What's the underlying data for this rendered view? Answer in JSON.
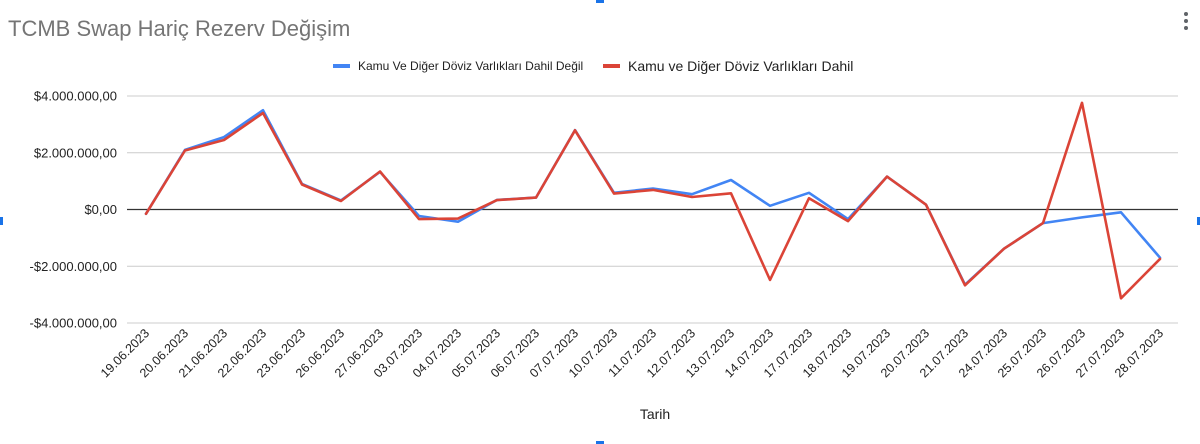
{
  "chart_data": {
    "type": "line",
    "title": "TCMB Swap Hariç Rezerv Değişim",
    "xlabel": "Tarih",
    "ylabel": "",
    "ylim": [
      -4000000,
      4000000
    ],
    "yticks": [
      4000000,
      2000000,
      0,
      -2000000,
      -4000000
    ],
    "ytick_labels": [
      "$4.000.000,00",
      "$2.000.000,00",
      "$0,00",
      "-$2.000.000,00",
      "-$4.000.000,00"
    ],
    "grid": true,
    "legend_position": "top-center",
    "categories": [
      "19.06.2023",
      "20.06.2023",
      "21.06.2023",
      "22.06.2023",
      "23.06.2023",
      "26.06.2023",
      "27.06.2023",
      "03.07.2023",
      "04.07.2023",
      "05.07.2023",
      "06.07.2023",
      "07.07.2023",
      "10.07.2023",
      "11.07.2023",
      "12.07.2023",
      "13.07.2023",
      "14.07.2023",
      "17.07.2023",
      "18.07.2023",
      "19.07.2023",
      "20.07.2023",
      "21.07.2023",
      "24.07.2023",
      "25.07.2023",
      "26.07.2023",
      "27.07.2023",
      "28.07.2023"
    ],
    "series": [
      {
        "name": "Kamu Ve Diğer Döviz Varlıkları Dahil Değil",
        "color": "#4285f4",
        "values": [
          -150000,
          2100000,
          2550000,
          3500000,
          900000,
          320000,
          1330000,
          -230000,
          -430000,
          340000,
          420000,
          2800000,
          590000,
          740000,
          540000,
          1040000,
          130000,
          590000,
          -340000,
          1160000,
          170000,
          -2650000,
          -1380000,
          -480000,
          -280000,
          -100000,
          -1700000
        ]
      },
      {
        "name": "Kamu ve Diğer Döviz Varlıkları Dahil",
        "color": "#db4437",
        "values": [
          -150000,
          2080000,
          2450000,
          3400000,
          880000,
          300000,
          1340000,
          -340000,
          -320000,
          330000,
          420000,
          2790000,
          560000,
          690000,
          440000,
          570000,
          -2480000,
          400000,
          -410000,
          1160000,
          170000,
          -2670000,
          -1380000,
          -480000,
          3760000,
          -3130000,
          -1740000
        ]
      }
    ]
  }
}
